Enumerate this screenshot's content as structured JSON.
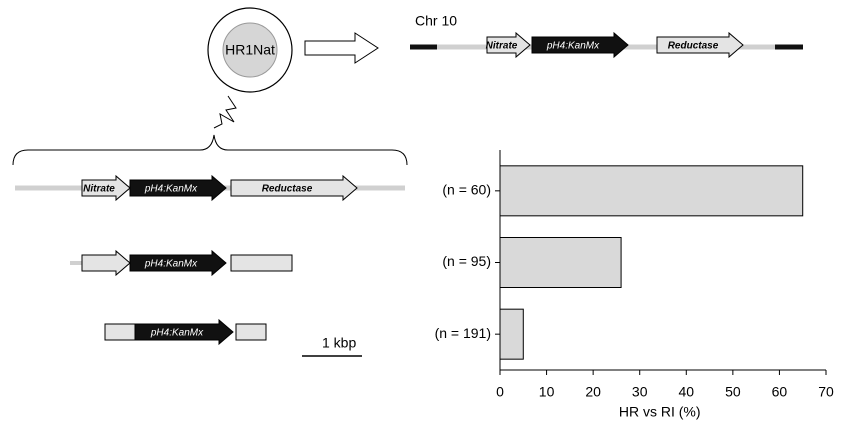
{
  "diagram": {
    "plasmid": "HR1Nat",
    "chromosome": "Chr 10",
    "chromosome_genes": [
      "Nitrate",
      "pH4:KanMx",
      "Reductase"
    ],
    "constructs": [
      {
        "labels": [
          "Nitrate",
          "pH4:KanMx",
          "Reductase"
        ]
      },
      {
        "labels": [
          "pH4:KanMx"
        ]
      },
      {
        "labels": [
          "pH4:KanMx"
        ]
      }
    ],
    "scale_bar": "1 kbp"
  },
  "chart_data": {
    "type": "bar",
    "orientation": "horizontal",
    "x_label": "HR vs RI (%)",
    "categories": [
      "(n = 60)",
      "(n = 95)",
      "(n = 191)"
    ],
    "values": [
      65,
      26,
      5
    ],
    "color": "#d9d9d9",
    "xlim": [
      0,
      70
    ],
    "xticks": [
      0,
      10,
      20,
      30,
      40,
      50,
      60,
      70
    ],
    "grid": false
  }
}
